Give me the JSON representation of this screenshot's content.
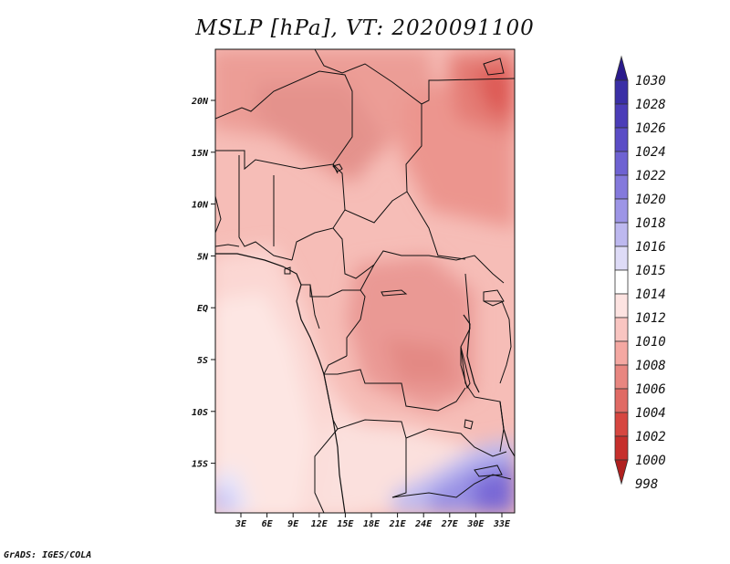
{
  "title": "MSLP [hPa], VT: 2020091100",
  "credit": "GrADS: IGES/COLA",
  "lat_labels": [
    "20N",
    "15N",
    "10N",
    "5N",
    "EQ",
    "5S",
    "10S",
    "15S"
  ],
  "lon_labels": [
    "3E",
    "6E",
    "9E",
    "12E",
    "15E",
    "18E",
    "21E",
    "24E",
    "27E",
    "30E",
    "33E"
  ],
  "colorbar": {
    "levels": [
      "1030",
      "1028",
      "1026",
      "1024",
      "1022",
      "1020",
      "1018",
      "1016",
      "1015",
      "1014",
      "1012",
      "1010",
      "1008",
      "1006",
      "1004",
      "1002",
      "1000",
      "998"
    ],
    "colors": [
      "#2a1a8c",
      "#3a2fa6",
      "#4b3db8",
      "#5b4dc6",
      "#6e62d2",
      "#8479dc",
      "#9d95e6",
      "#bdb8ef",
      "#dedbf7",
      "#ffffff",
      "#fde3e1",
      "#f9c5c1",
      "#f4a8a2",
      "#e88680",
      "#e06a64",
      "#d64640",
      "#c62f2c",
      "#b0201f"
    ]
  }
}
